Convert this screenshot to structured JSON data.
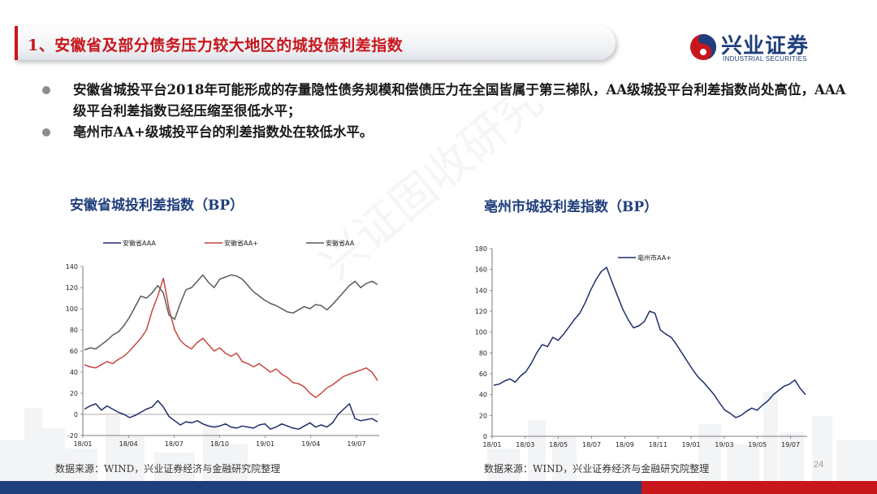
{
  "title": "1、安徽省及部分债务压力较大地区的城投债利差指数",
  "logo": {
    "name": "兴业证券",
    "en": "INDUSTRIAL SECURITIES"
  },
  "bullets": [
    "安徽省城投平台2018年可能形成的存量隐性债务规模和偿债压力在全国皆属于第三梯队，AA级城投平台利差指数尚处高位，AAA级平台利差指数已经压缩至很低水平；",
    "亳州市AA+级城投平台的利差指数处在较低水平。"
  ],
  "watermark": "兴证固收研究",
  "chart_left_title": "安徽省城投利差指数（BP）",
  "chart_right_title": "亳州市城投利差指数（BP）",
  "source_left": "数据来源：WIND，兴业证券经济与金融研究院整理",
  "source_right": "数据来源：WIND，兴业证券经济与金融研究院整理",
  "page_number": "24",
  "colors": {
    "brand_red": "#c8161d",
    "brand_blue": "#1f3e7c"
  },
  "chart_data": [
    {
      "type": "line",
      "x_ticks": [
        "18/01",
        "18/04",
        "18/07",
        "18/10",
        "19/01",
        "19/04",
        "19/07"
      ],
      "ylim": [
        -20,
        140
      ],
      "y_ticks": [
        -20,
        0,
        20,
        40,
        60,
        80,
        100,
        120,
        140
      ],
      "legend_position": "top",
      "series": [
        {
          "name": "安徽省AAA",
          "color": "#1f2d6b",
          "values": [
            5,
            8,
            10,
            4,
            8,
            5,
            2,
            0,
            -3,
            -1,
            2,
            5,
            7,
            13,
            7,
            -2,
            -6,
            -10,
            -7,
            -8,
            -6,
            -9,
            -11,
            -12,
            -11,
            -9,
            -12,
            -13,
            -11,
            -12,
            -13,
            -10,
            -9,
            -14,
            -12,
            -9,
            -11,
            -13,
            -14,
            -11,
            -8,
            -12,
            -10,
            -12,
            -8,
            0,
            5,
            10,
            -4,
            -6,
            -5,
            -4,
            -7
          ]
        },
        {
          "name": "安徽省AA+",
          "color": "#c8463d",
          "values": [
            47,
            45,
            44,
            47,
            50,
            48,
            52,
            55,
            60,
            66,
            72,
            80,
            98,
            112,
            129,
            100,
            80,
            70,
            65,
            62,
            68,
            72,
            66,
            60,
            63,
            58,
            55,
            58,
            50,
            48,
            45,
            48,
            44,
            40,
            43,
            38,
            35,
            30,
            29,
            26,
            20,
            16,
            20,
            25,
            28,
            32,
            36,
            38,
            40,
            42,
            44,
            40,
            32
          ]
        },
        {
          "name": "安徽省AA",
          "color": "#5a5a5a",
          "values": [
            61,
            63,
            62,
            66,
            70,
            75,
            78,
            84,
            92,
            102,
            112,
            110,
            115,
            122,
            115,
            94,
            90,
            105,
            118,
            120,
            126,
            132,
            125,
            120,
            128,
            130,
            132,
            131,
            128,
            122,
            116,
            112,
            108,
            105,
            103,
            100,
            97,
            96,
            99,
            102,
            100,
            104,
            103,
            99,
            104,
            110,
            116,
            122,
            126,
            120,
            124,
            126,
            123
          ]
        }
      ]
    },
    {
      "type": "line",
      "x_ticks": [
        "18/01",
        "18/03",
        "18/05",
        "18/07",
        "18/09",
        "18/11",
        "19/01",
        "19/03",
        "19/05",
        "19/07"
      ],
      "ylim": [
        0,
        180
      ],
      "y_ticks": [
        0,
        20,
        40,
        60,
        80,
        100,
        120,
        140,
        160,
        180
      ],
      "legend_position": "top",
      "series": [
        {
          "name": "亳州市AA+",
          "color": "#1f2d6b",
          "values": [
            49,
            50,
            53,
            55,
            52,
            58,
            62,
            70,
            80,
            88,
            86,
            95,
            92,
            98,
            105,
            112,
            118,
            128,
            140,
            150,
            158,
            162,
            148,
            135,
            122,
            112,
            104,
            106,
            110,
            120,
            118,
            102,
            98,
            95,
            88,
            80,
            72,
            64,
            57,
            52,
            46,
            40,
            32,
            25,
            22,
            18,
            20,
            24,
            27,
            25,
            30,
            34,
            40,
            44,
            48,
            50,
            54,
            46,
            40
          ]
        }
      ]
    }
  ]
}
